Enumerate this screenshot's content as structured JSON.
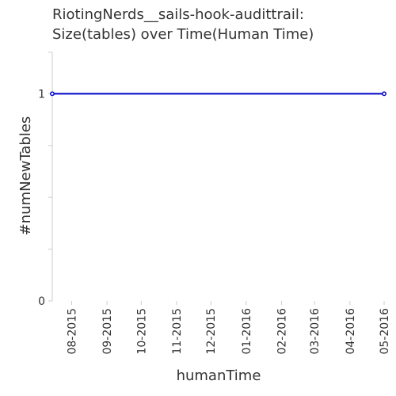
{
  "chart_data": {
    "type": "line",
    "title": "RiotingNerds__sails-hook-audittrail:",
    "subtitle": "Size(tables) over Time(Human Time)",
    "xlabel": "humanTime",
    "ylabel": "#numNewTables",
    "x_tick_labels": [
      "08-2015",
      "09-2015",
      "10-2015",
      "11-2015",
      "12-2015",
      "01-2016",
      "02-2016",
      "03-2016",
      "04-2016",
      "05-2016"
    ],
    "y_tick_labels": [
      "0",
      "1"
    ],
    "ylim": [
      0,
      1.2
    ],
    "grid": false,
    "series": [
      {
        "x": [
          "2015-07-15",
          "2016-05-01"
        ],
        "y": [
          1,
          1
        ],
        "color": "#0000cc"
      }
    ]
  }
}
